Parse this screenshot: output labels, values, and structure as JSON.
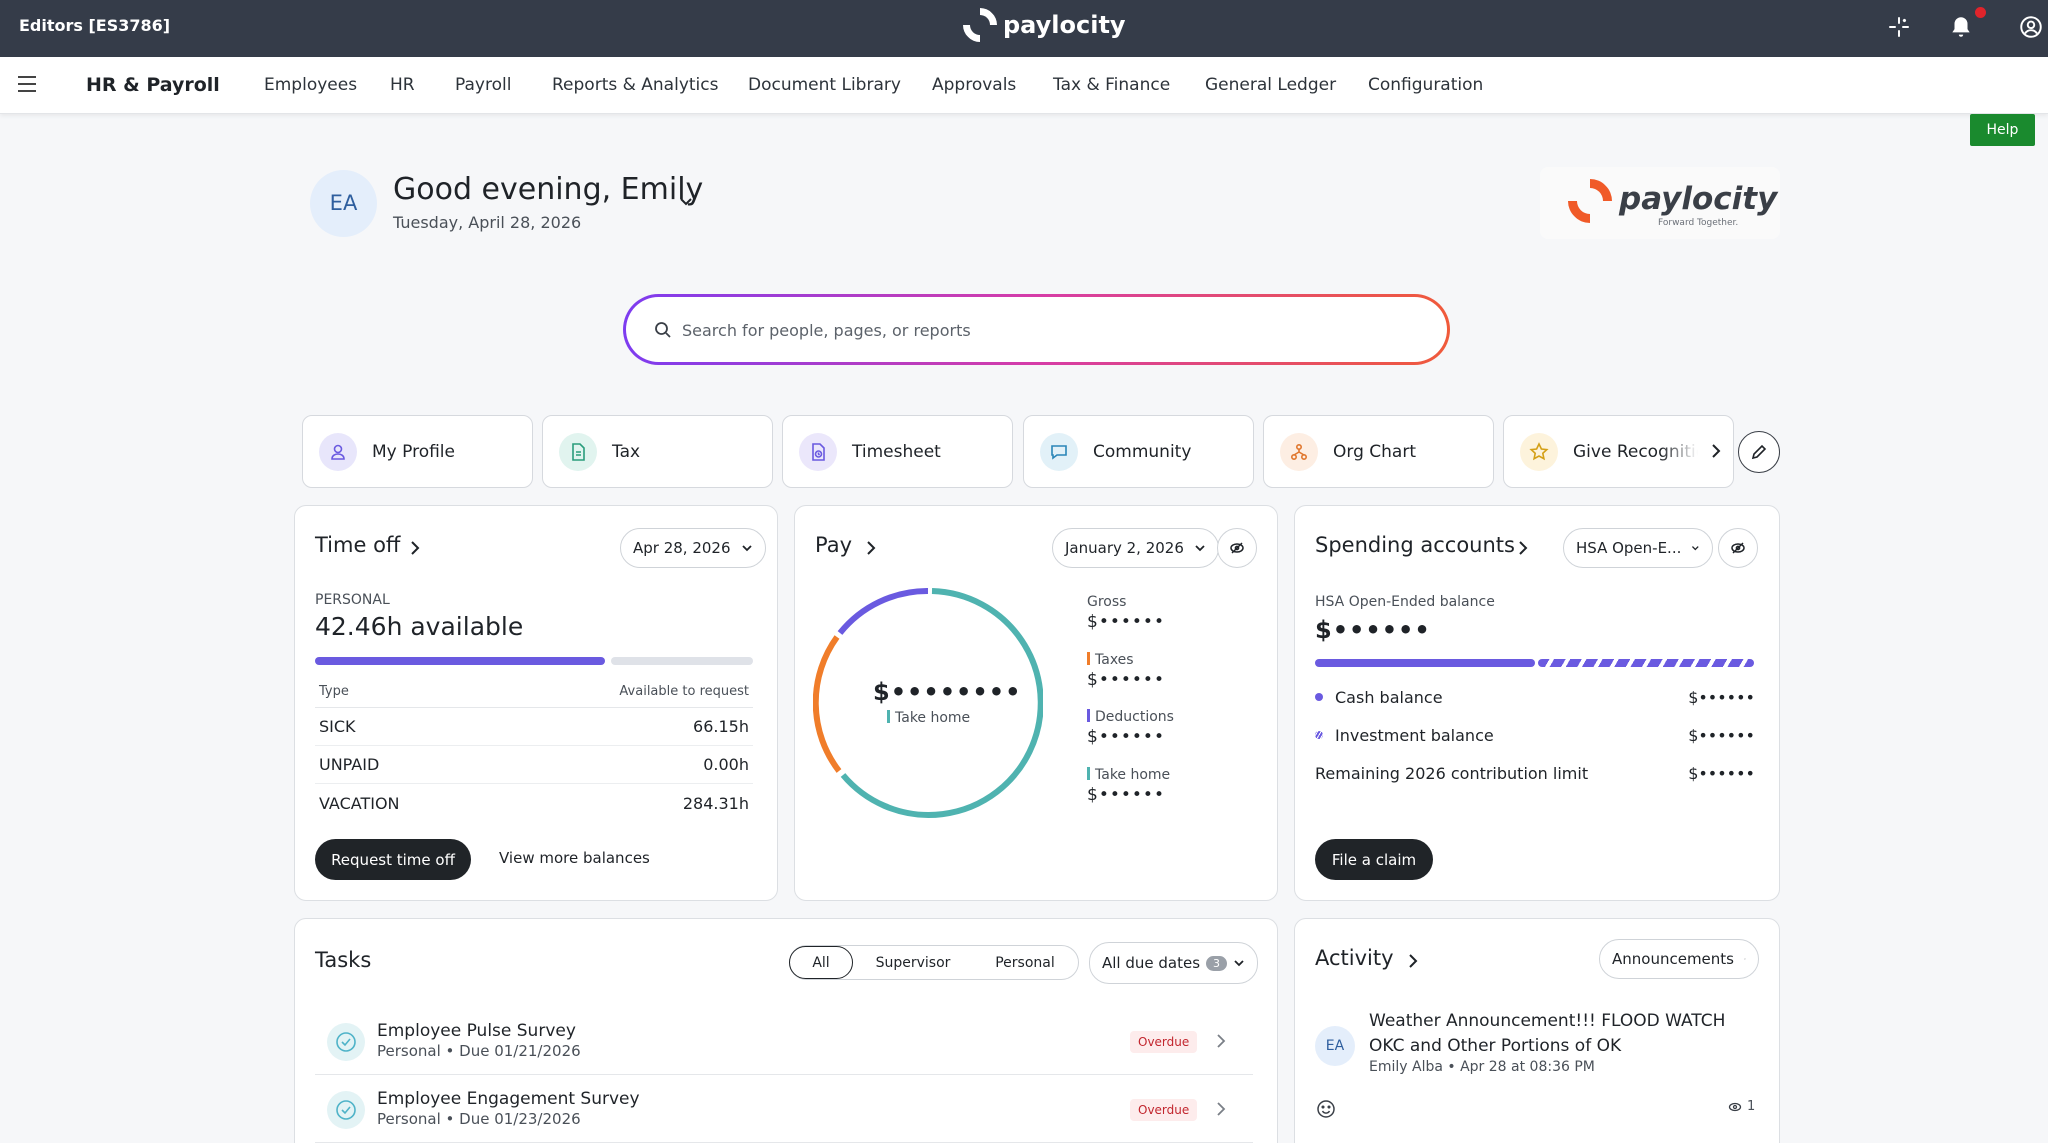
{
  "topbar": {
    "env_label": "Editors [ES3786]",
    "brand": "paylocity"
  },
  "nav": {
    "brand": "HR & Payroll",
    "items": [
      "Employees",
      "HR",
      "Payroll",
      "Reports & Analytics",
      "Document Library",
      "Approvals",
      "Tax & Finance",
      "General Ledger",
      "Configuration"
    ]
  },
  "help_label": "Help",
  "greeting": {
    "initials": "EA",
    "text": "Good evening, Emily",
    "date": "Tuesday, April 28, 2026"
  },
  "company_logo": {
    "name": "paylocity",
    "tagline": "Forward Together."
  },
  "search": {
    "placeholder": "Search for people, pages, or reports"
  },
  "shortcuts": [
    {
      "label": "My Profile",
      "icon": "person-icon",
      "color": "#e8e6fb"
    },
    {
      "label": "Tax",
      "icon": "document-icon",
      "color": "#e1f4ef"
    },
    {
      "label": "Timesheet",
      "icon": "timesheet-icon",
      "color": "#ebe7fb"
    },
    {
      "label": "Community",
      "icon": "chat-icon",
      "color": "#e2f1f8"
    },
    {
      "label": "Org Chart",
      "icon": "org-chart-icon",
      "color": "#fdeee3"
    },
    {
      "label": "Give Recognition",
      "icon": "star-icon",
      "color": "#fdf3dc"
    }
  ],
  "time_off": {
    "title": "Time off",
    "date": "Apr 28, 2026",
    "category": "PERSONAL",
    "available": "42.46h available",
    "used_fraction": 0.67,
    "col_type": "Type",
    "col_available": "Available to request",
    "rows": [
      {
        "type": "SICK",
        "value": "66.15h"
      },
      {
        "type": "UNPAID",
        "value": "0.00h"
      },
      {
        "type": "VACATION",
        "value": "284.31h"
      }
    ],
    "request_btn": "Request time off",
    "more_link": "View more balances"
  },
  "pay": {
    "title": "Pay",
    "date": "January 2, 2026",
    "center_amount": "$••••••••",
    "center_label": "Take home",
    "legend": [
      {
        "label": "Gross",
        "amount": "$••••••",
        "color": ""
      },
      {
        "label": "Taxes",
        "amount": "$••••••",
        "color": "#f07d2a"
      },
      {
        "label": "Deductions",
        "amount": "$••••••",
        "color": "#6a5ae0"
      },
      {
        "label": "Take home",
        "amount": "$••••••",
        "color": "#4fb3b0"
      }
    ],
    "colors": {
      "taxes": "#f07d2a",
      "deductions": "#6a5ae0",
      "take_home": "#4fb3b0"
    }
  },
  "spending": {
    "title": "Spending accounts",
    "account": "HSA Open-E...",
    "balance_label": "HSA Open-Ended balance",
    "balance": "$••••••",
    "rows": [
      {
        "label": "Cash balance",
        "value": "$••••••"
      },
      {
        "label": "Investment balance",
        "value": "$••••••"
      },
      {
        "label": "Remaining 2026 contribution limit",
        "value": "$••••••"
      }
    ],
    "claim_btn": "File a claim"
  },
  "tasks": {
    "title": "Tasks",
    "filters": [
      "All",
      "Supervisor",
      "Personal"
    ],
    "due_filter": "All due dates",
    "due_count": "3",
    "items": [
      {
        "name": "Employee Pulse Survey",
        "sub": "Personal • Due 01/21/2026",
        "status": "Overdue"
      },
      {
        "name": "Employee Engagement Survey",
        "sub": "Personal • Due 01/23/2026",
        "status": "Overdue"
      }
    ]
  },
  "activity": {
    "title": "Activity",
    "filter": "Announcements",
    "initials": "EA",
    "post_title": "Weather Announcement!!! FLOOD WATCH OKC and Other Portions of OK",
    "meta": "Emily Alba • Apr 28 at 08:36 PM",
    "views": "1"
  }
}
